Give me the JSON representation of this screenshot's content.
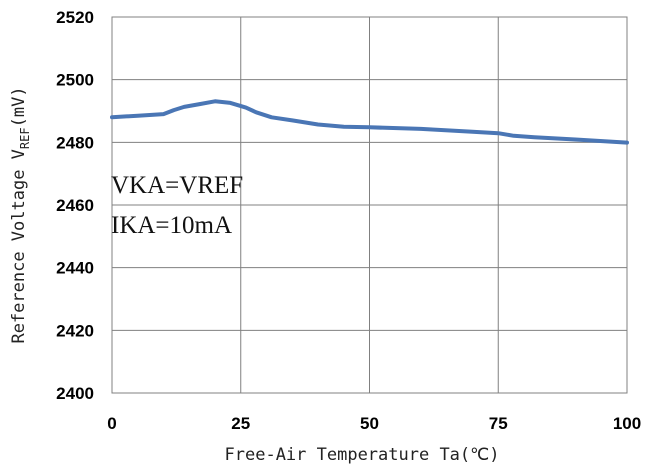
{
  "chart_data": {
    "type": "line",
    "xlabel": "Free-Air Temperature Ta(℃)",
    "ylabel": {
      "main": "Reference Voltage V",
      "subscript": "REF",
      "unit": "(mV)"
    },
    "xlim": [
      0,
      100
    ],
    "ylim": [
      2400,
      2520
    ],
    "xticks": [
      0,
      25,
      50,
      75,
      100
    ],
    "yticks": [
      2400,
      2420,
      2440,
      2460,
      2480,
      2500,
      2520
    ],
    "grid": true,
    "annotations": [
      "VKA=VREF",
      "IKA=10mA"
    ],
    "series": [
      {
        "color": "#4a76b5",
        "x": [
          0,
          5,
          10,
          12,
          14,
          17,
          20,
          23,
          26,
          28,
          31,
          35,
          40,
          45,
          50,
          60,
          70,
          75,
          78,
          82,
          90,
          100
        ],
        "y": [
          2488,
          2488.5,
          2489,
          2490.3,
          2491.3,
          2492.2,
          2493.1,
          2492.6,
          2491.1,
          2489.6,
          2488,
          2487,
          2485.7,
          2485,
          2484.8,
          2484.3,
          2483.4,
          2482.9,
          2482.1,
          2481.6,
          2480.9,
          2479.9
        ]
      }
    ]
  }
}
